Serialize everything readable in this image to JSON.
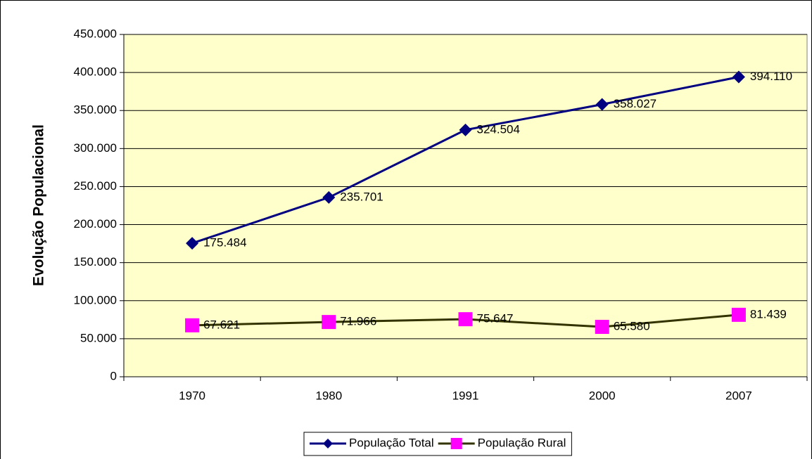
{
  "chart_data": {
    "type": "line",
    "y_label": "Evolução Populacional",
    "categories": [
      "1970",
      "1980",
      "1991",
      "2000",
      "2007"
    ],
    "series": [
      {
        "name": "População Total",
        "color": "#000080",
        "marker": "diamond",
        "marker_color": "#000080",
        "values": [
          175484,
          235701,
          324504,
          358027,
          394110
        ],
        "value_labels": [
          "175.484",
          "235.701",
          "324.504",
          "358.027",
          "394.110"
        ]
      },
      {
        "name": "População Rural",
        "color": "#333300",
        "marker": "square",
        "marker_color": "#ff00ff",
        "values": [
          67621,
          71966,
          75647,
          65580,
          81439
        ],
        "value_labels": [
          "67.621",
          "71.966",
          "75.647",
          "65.580",
          "81.439"
        ]
      }
    ],
    "ylim": [
      0,
      450000
    ],
    "yticks": [
      0,
      {
        "value": 50000,
        "label": "50.000"
      },
      {
        "value": 100000,
        "label": "100.000"
      },
      {
        "value": 150000,
        "label": "150.000"
      },
      {
        "value": 200000,
        "label": "200.000"
      },
      {
        "value": 250000,
        "label": "250.000"
      },
      {
        "value": 300000,
        "label": "300.000"
      },
      {
        "value": 350000,
        "label": "350.000"
      },
      {
        "value": 400000,
        "label": "400.000"
      },
      {
        "value": 450000,
        "label": "450.000"
      }
    ],
    "grid": true,
    "legend": "bottom",
    "plot_background": "#ffffcc"
  }
}
